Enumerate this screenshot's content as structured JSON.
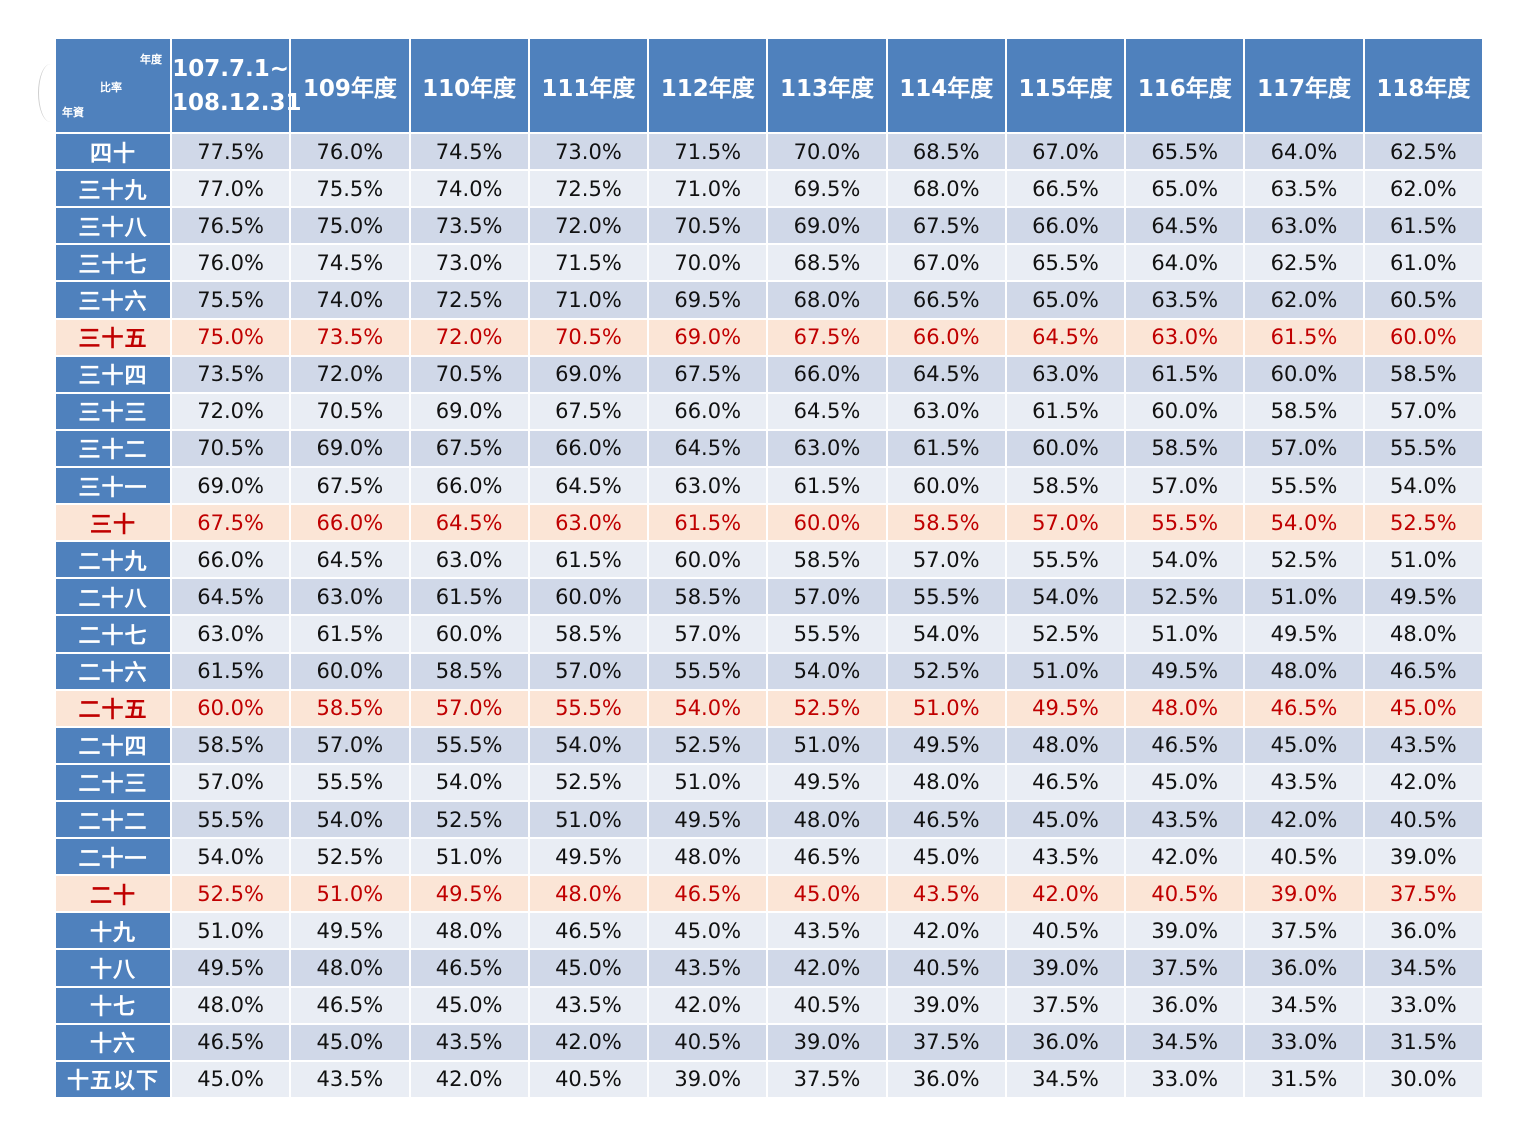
{
  "header": {
    "corner": {
      "top": "年度",
      "middle": "比率",
      "bottom": "年資"
    },
    "columns": [
      "107.7.1~\n108.12.31",
      "109年度",
      "110年度",
      "111年度",
      "112年度",
      "113年度",
      "114年度",
      "115年度",
      "116年度",
      "117年度",
      "118年度"
    ]
  },
  "rows": [
    {
      "label": "四十",
      "highlight": false,
      "values": [
        "77.5%",
        "76.0%",
        "74.5%",
        "73.0%",
        "71.5%",
        "70.0%",
        "68.5%",
        "67.0%",
        "65.5%",
        "64.0%",
        "62.5%"
      ]
    },
    {
      "label": "三十九",
      "highlight": false,
      "values": [
        "77.0%",
        "75.5%",
        "74.0%",
        "72.5%",
        "71.0%",
        "69.5%",
        "68.0%",
        "66.5%",
        "65.0%",
        "63.5%",
        "62.0%"
      ]
    },
    {
      "label": "三十八",
      "highlight": false,
      "values": [
        "76.5%",
        "75.0%",
        "73.5%",
        "72.0%",
        "70.5%",
        "69.0%",
        "67.5%",
        "66.0%",
        "64.5%",
        "63.0%",
        "61.5%"
      ]
    },
    {
      "label": "三十七",
      "highlight": false,
      "values": [
        "76.0%",
        "74.5%",
        "73.0%",
        "71.5%",
        "70.0%",
        "68.5%",
        "67.0%",
        "65.5%",
        "64.0%",
        "62.5%",
        "61.0%"
      ]
    },
    {
      "label": "三十六",
      "highlight": false,
      "values": [
        "75.5%",
        "74.0%",
        "72.5%",
        "71.0%",
        "69.5%",
        "68.0%",
        "66.5%",
        "65.0%",
        "63.5%",
        "62.0%",
        "60.5%"
      ]
    },
    {
      "label": "三十五",
      "highlight": true,
      "values": [
        "75.0%",
        "73.5%",
        "72.0%",
        "70.5%",
        "69.0%",
        "67.5%",
        "66.0%",
        "64.5%",
        "63.0%",
        "61.5%",
        "60.0%"
      ]
    },
    {
      "label": "三十四",
      "highlight": false,
      "values": [
        "73.5%",
        "72.0%",
        "70.5%",
        "69.0%",
        "67.5%",
        "66.0%",
        "64.5%",
        "63.0%",
        "61.5%",
        "60.0%",
        "58.5%"
      ]
    },
    {
      "label": "三十三",
      "highlight": false,
      "values": [
        "72.0%",
        "70.5%",
        "69.0%",
        "67.5%",
        "66.0%",
        "64.5%",
        "63.0%",
        "61.5%",
        "60.0%",
        "58.5%",
        "57.0%"
      ]
    },
    {
      "label": "三十二",
      "highlight": false,
      "values": [
        "70.5%",
        "69.0%",
        "67.5%",
        "66.0%",
        "64.5%",
        "63.0%",
        "61.5%",
        "60.0%",
        "58.5%",
        "57.0%",
        "55.5%"
      ]
    },
    {
      "label": "三十一",
      "highlight": false,
      "values": [
        "69.0%",
        "67.5%",
        "66.0%",
        "64.5%",
        "63.0%",
        "61.5%",
        "60.0%",
        "58.5%",
        "57.0%",
        "55.5%",
        "54.0%"
      ]
    },
    {
      "label": "三十",
      "highlight": true,
      "values": [
        "67.5%",
        "66.0%",
        "64.5%",
        "63.0%",
        "61.5%",
        "60.0%",
        "58.5%",
        "57.0%",
        "55.5%",
        "54.0%",
        "52.5%"
      ]
    },
    {
      "label": "二十九",
      "highlight": false,
      "values": [
        "66.0%",
        "64.5%",
        "63.0%",
        "61.5%",
        "60.0%",
        "58.5%",
        "57.0%",
        "55.5%",
        "54.0%",
        "52.5%",
        "51.0%"
      ]
    },
    {
      "label": "二十八",
      "highlight": false,
      "values": [
        "64.5%",
        "63.0%",
        "61.5%",
        "60.0%",
        "58.5%",
        "57.0%",
        "55.5%",
        "54.0%",
        "52.5%",
        "51.0%",
        "49.5%"
      ]
    },
    {
      "label": "二十七",
      "highlight": false,
      "values": [
        "63.0%",
        "61.5%",
        "60.0%",
        "58.5%",
        "57.0%",
        "55.5%",
        "54.0%",
        "52.5%",
        "51.0%",
        "49.5%",
        "48.0%"
      ]
    },
    {
      "label": "二十六",
      "highlight": false,
      "values": [
        "61.5%",
        "60.0%",
        "58.5%",
        "57.0%",
        "55.5%",
        "54.0%",
        "52.5%",
        "51.0%",
        "49.5%",
        "48.0%",
        "46.5%"
      ]
    },
    {
      "label": "二十五",
      "highlight": true,
      "values": [
        "60.0%",
        "58.5%",
        "57.0%",
        "55.5%",
        "54.0%",
        "52.5%",
        "51.0%",
        "49.5%",
        "48.0%",
        "46.5%",
        "45.0%"
      ]
    },
    {
      "label": "二十四",
      "highlight": false,
      "values": [
        "58.5%",
        "57.0%",
        "55.5%",
        "54.0%",
        "52.5%",
        "51.0%",
        "49.5%",
        "48.0%",
        "46.5%",
        "45.0%",
        "43.5%"
      ]
    },
    {
      "label": "二十三",
      "highlight": false,
      "values": [
        "57.0%",
        "55.5%",
        "54.0%",
        "52.5%",
        "51.0%",
        "49.5%",
        "48.0%",
        "46.5%",
        "45.0%",
        "43.5%",
        "42.0%"
      ]
    },
    {
      "label": "二十二",
      "highlight": false,
      "values": [
        "55.5%",
        "54.0%",
        "52.5%",
        "51.0%",
        "49.5%",
        "48.0%",
        "46.5%",
        "45.0%",
        "43.5%",
        "42.0%",
        "40.5%"
      ]
    },
    {
      "label": "二十一",
      "highlight": false,
      "values": [
        "54.0%",
        "52.5%",
        "51.0%",
        "49.5%",
        "48.0%",
        "46.5%",
        "45.0%",
        "43.5%",
        "42.0%",
        "40.5%",
        "39.0%"
      ]
    },
    {
      "label": "二十",
      "highlight": true,
      "values": [
        "52.5%",
        "51.0%",
        "49.5%",
        "48.0%",
        "46.5%",
        "45.0%",
        "43.5%",
        "42.0%",
        "40.5%",
        "39.0%",
        "37.5%"
      ]
    },
    {
      "label": "十九",
      "highlight": false,
      "values": [
        "51.0%",
        "49.5%",
        "48.0%",
        "46.5%",
        "45.0%",
        "43.5%",
        "42.0%",
        "40.5%",
        "39.0%",
        "37.5%",
        "36.0%"
      ]
    },
    {
      "label": "十八",
      "highlight": false,
      "values": [
        "49.5%",
        "48.0%",
        "46.5%",
        "45.0%",
        "43.5%",
        "42.0%",
        "40.5%",
        "39.0%",
        "37.5%",
        "36.0%",
        "34.5%"
      ]
    },
    {
      "label": "十七",
      "highlight": false,
      "values": [
        "48.0%",
        "46.5%",
        "45.0%",
        "43.5%",
        "42.0%",
        "40.5%",
        "39.0%",
        "37.5%",
        "36.0%",
        "34.5%",
        "33.0%"
      ]
    },
    {
      "label": "十六",
      "highlight": false,
      "values": [
        "46.5%",
        "45.0%",
        "43.5%",
        "42.0%",
        "40.5%",
        "39.0%",
        "37.5%",
        "36.0%",
        "34.5%",
        "33.0%",
        "31.5%"
      ]
    },
    {
      "label": "十五以下",
      "highlight": false,
      "values": [
        "45.0%",
        "43.5%",
        "42.0%",
        "40.5%",
        "39.0%",
        "37.5%",
        "36.0%",
        "34.5%",
        "33.0%",
        "31.5%",
        "30.0%"
      ]
    }
  ],
  "colors": {
    "header_bg": "#4f81bd",
    "row_band_dark": "#d0d8e8",
    "row_band_light": "#e9edf4",
    "highlight_bg": "#fbe5d6",
    "highlight_text": "#c00000"
  }
}
